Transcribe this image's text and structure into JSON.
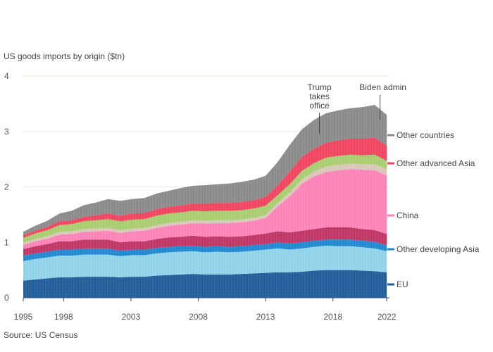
{
  "chart_data": {
    "type": "area",
    "title": "",
    "subtitle": "",
    "ylabel": "",
    "xlabel": "",
    "ylim": [
      0,
      4
    ],
    "xlim": [
      1995,
      2022.2
    ],
    "yticks": [
      "0",
      "1",
      "2",
      "3",
      "4"
    ],
    "xticks": [
      {
        "label": "1995",
        "value": 1995.0
      },
      {
        "label": "1998",
        "value": 1998.0
      },
      {
        "label": "2003",
        "value": 2003.0
      },
      {
        "label": "2008",
        "value": 2008.0
      },
      {
        "label": "2013",
        "value": 2013.0
      },
      {
        "label": "2018",
        "value": 2018.0
      },
      {
        "label": "2022",
        "value": 2022.0
      }
    ],
    "grid": true,
    "series_order": [
      "bottom-to-top"
    ],
    "series": [
      {
        "name": "",
        "color": "#1f5c99",
        "values": [
          0.31,
          0.33,
          0.35,
          0.37,
          0.37,
          0.38,
          0.38,
          0.38,
          0.37,
          0.38,
          0.38,
          0.4,
          0.41,
          0.42,
          0.43,
          0.42,
          0.42,
          0.42,
          0.43,
          0.44,
          0.45,
          0.46,
          0.46,
          0.47,
          0.49,
          0.5,
          0.5,
          0.5,
          0.49,
          0.48,
          0.46
        ]
      },
      {
        "name": "",
        "color": "#8fd3ea",
        "values": [
          0.35,
          0.37,
          0.38,
          0.39,
          0.39,
          0.4,
          0.4,
          0.4,
          0.38,
          0.39,
          0.39,
          0.4,
          0.41,
          0.41,
          0.41,
          0.4,
          0.41,
          0.4,
          0.4,
          0.41,
          0.42,
          0.43,
          0.41,
          0.42,
          0.43,
          0.44,
          0.43,
          0.43,
          0.42,
          0.41,
          0.38
        ]
      },
      {
        "name": "",
        "color": "#1e88d0",
        "values": [
          0.1,
          0.1,
          0.1,
          0.11,
          0.11,
          0.11,
          0.11,
          0.11,
          0.1,
          0.1,
          0.1,
          0.1,
          0.1,
          0.1,
          0.1,
          0.1,
          0.1,
          0.1,
          0.1,
          0.1,
          0.1,
          0.11,
          0.11,
          0.11,
          0.11,
          0.11,
          0.12,
          0.12,
          0.12,
          0.12,
          0.11
        ]
      },
      {
        "name": "",
        "color": "#c03464",
        "values": [
          0.12,
          0.13,
          0.14,
          0.15,
          0.15,
          0.16,
          0.16,
          0.16,
          0.15,
          0.15,
          0.15,
          0.16,
          0.17,
          0.17,
          0.18,
          0.18,
          0.18,
          0.18,
          0.18,
          0.18,
          0.19,
          0.2,
          0.2,
          0.21,
          0.21,
          0.22,
          0.22,
          0.22,
          0.21,
          0.21,
          0.2
        ]
      },
      {
        "name": "",
        "color": "#ff82b7",
        "values": [
          0.08,
          0.09,
          0.1,
          0.12,
          0.13,
          0.14,
          0.15,
          0.16,
          0.17,
          0.18,
          0.19,
          0.2,
          0.21,
          0.22,
          0.23,
          0.24,
          0.24,
          0.25,
          0.25,
          0.26,
          0.28,
          0.45,
          0.65,
          0.85,
          0.95,
          1.0,
          1.03,
          1.05,
          1.07,
          1.08,
          1.06
        ]
      },
      {
        "name": "",
        "color": "#d8c7b6",
        "values": [
          0.03,
          0.04,
          0.04,
          0.05,
          0.05,
          0.05,
          0.05,
          0.05,
          0.05,
          0.05,
          0.05,
          0.05,
          0.05,
          0.05,
          0.05,
          0.05,
          0.05,
          0.05,
          0.05,
          0.05,
          0.05,
          0.06,
          0.07,
          0.08,
          0.09,
          0.1,
          0.1,
          0.1,
          0.1,
          0.11,
          0.11
        ]
      },
      {
        "name": "",
        "color": "#a8cc6e",
        "values": [
          0.09,
          0.1,
          0.11,
          0.12,
          0.13,
          0.14,
          0.15,
          0.16,
          0.16,
          0.16,
          0.16,
          0.17,
          0.17,
          0.17,
          0.17,
          0.17,
          0.17,
          0.17,
          0.17,
          0.17,
          0.17,
          0.14,
          0.15,
          0.15,
          0.15,
          0.16,
          0.16,
          0.16,
          0.16,
          0.17,
          0.15
        ]
      },
      {
        "name": "",
        "color": "#f0435e",
        "values": [
          0.05,
          0.05,
          0.06,
          0.07,
          0.07,
          0.08,
          0.09,
          0.1,
          0.1,
          0.11,
          0.11,
          0.12,
          0.12,
          0.13,
          0.13,
          0.14,
          0.14,
          0.14,
          0.15,
          0.15,
          0.16,
          0.18,
          0.23,
          0.25,
          0.26,
          0.27,
          0.28,
          0.29,
          0.3,
          0.31,
          0.27
        ]
      },
      {
        "name": "",
        "color": "#8a8a8a",
        "values": [
          0.06,
          0.09,
          0.11,
          0.14,
          0.17,
          0.21,
          0.23,
          0.26,
          0.27,
          0.26,
          0.27,
          0.28,
          0.29,
          0.31,
          0.32,
          0.33,
          0.34,
          0.35,
          0.36,
          0.37,
          0.38,
          0.42,
          0.48,
          0.5,
          0.52,
          0.53,
          0.54,
          0.55,
          0.57,
          0.59,
          0.56
        ]
      }
    ],
    "x": [
      1995.0,
      1995.9,
      1996.8,
      1997.7,
      1998.6,
      1999.5,
      2000.4,
      2001.3,
      2002.2,
      2003.1,
      2004.0,
      2004.9,
      2005.8,
      2006.7,
      2007.6,
      2008.5,
      2009.4,
      2010.3,
      2011.2,
      2012.1,
      2013.0,
      2013.9,
      2014.8,
      2015.7,
      2016.6,
      2017.5,
      2018.4,
      2019.3,
      2020.2,
      2021.1,
      2022.0
    ]
  },
  "annotations": [
    {
      "id": "event-2017",
      "lines": [
        "Trump",
        "takes",
        "office"
      ]
    },
    {
      "id": "event-2021",
      "lines": [
        "Biden",
        "admin"
      ]
    }
  ],
  "legend": [
    {
      "label": "Other countries",
      "color": "#8a8a8a"
    },
    {
      "label": "Other advanced Asia",
      "color": "#f0435e"
    },
    {
      "label": "China",
      "color": "#ff82b7"
    },
    {
      "label": "Other developing Asia",
      "color": "#1e88d0"
    },
    {
      "label": "EU",
      "color": "#1f5c99"
    }
  ],
  "top_label": "US goods imports by origin ($tn)",
  "source_label": "Source: US Census"
}
